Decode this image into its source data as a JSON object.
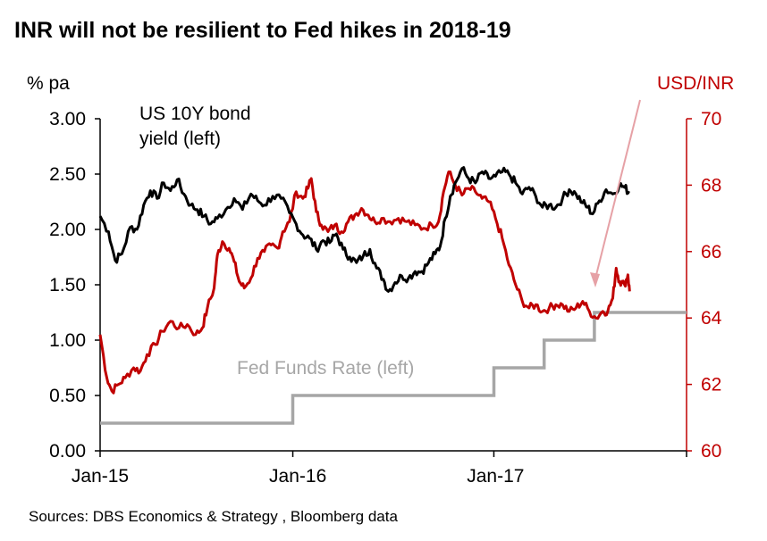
{
  "chart_data": {
    "type": "line",
    "title": "INR will not be resilient to Fed hikes in 2018-19",
    "source": "Sources: DBS Economics & Strategy , Bloomberg data",
    "left_axis": {
      "unit_label": "% pa",
      "min": 0,
      "max": 3,
      "ticks": [
        "0.00",
        "0.50",
        "1.00",
        "1.50",
        "2.00",
        "2.50",
        "3.00"
      ]
    },
    "right_axis": {
      "unit_label": "USD/INR",
      "min": 60,
      "max": 70,
      "ticks": [
        "60",
        "62",
        "64",
        "66",
        "68",
        "70"
      ]
    },
    "x_axis": {
      "tick_labels": [
        "Jan-15",
        "Jan-16",
        "Jan-17"
      ]
    },
    "annotations": {
      "us10y": [
        "US 10Y bond",
        "yield (left)"
      ],
      "ffr": "Fed Funds Rate (left)"
    },
    "colors": {
      "us10y": "#000000",
      "usdinr": "#c00000",
      "ffr": "#a6a6a6",
      "arrow": "#e6a1a6"
    },
    "series": [
      {
        "name": "US 10Y bond yield (left)",
        "axis": "left",
        "points": [
          [
            0,
            2.12
          ],
          [
            0.5,
            1.98
          ],
          [
            0.9,
            1.72
          ],
          [
            1.3,
            1.78
          ],
          [
            1.8,
            2.02
          ],
          [
            2.2,
            2.0
          ],
          [
            2.6,
            2.22
          ],
          [
            3.0,
            2.35
          ],
          [
            3.4,
            2.28
          ],
          [
            3.8,
            2.42
          ],
          [
            4.2,
            2.35
          ],
          [
            4.6,
            2.45
          ],
          [
            5.0,
            2.32
          ],
          [
            5.4,
            2.22
          ],
          [
            5.8,
            2.18
          ],
          [
            6.2,
            2.12
          ],
          [
            6.6,
            2.05
          ],
          [
            7.0,
            2.1
          ],
          [
            7.5,
            2.18
          ],
          [
            8.0,
            2.28
          ],
          [
            8.5,
            2.18
          ],
          [
            9.0,
            2.32
          ],
          [
            9.4,
            2.26
          ],
          [
            9.8,
            2.22
          ],
          [
            10.3,
            2.3
          ],
          [
            10.8,
            2.28
          ],
          [
            11.3,
            2.15
          ],
          [
            11.7,
            2.05
          ],
          [
            12.1,
            1.95
          ],
          [
            12.5,
            1.92
          ],
          [
            12.9,
            1.82
          ],
          [
            13.3,
            1.9
          ],
          [
            13.7,
            1.88
          ],
          [
            14.1,
            1.96
          ],
          [
            14.5,
            1.82
          ],
          [
            14.9,
            1.75
          ],
          [
            15.3,
            1.7
          ],
          [
            15.7,
            1.76
          ],
          [
            16.1,
            1.82
          ],
          [
            16.5,
            1.65
          ],
          [
            16.9,
            1.55
          ],
          [
            17.2,
            1.44
          ],
          [
            17.6,
            1.52
          ],
          [
            18.0,
            1.58
          ],
          [
            18.4,
            1.56
          ],
          [
            18.8,
            1.62
          ],
          [
            19.2,
            1.62
          ],
          [
            19.6,
            1.7
          ],
          [
            20.0,
            1.78
          ],
          [
            20.3,
            1.85
          ],
          [
            20.6,
            2.1
          ],
          [
            20.9,
            2.3
          ],
          [
            21.2,
            2.42
          ],
          [
            21.6,
            2.55
          ],
          [
            22.0,
            2.46
          ],
          [
            22.4,
            2.42
          ],
          [
            22.8,
            2.52
          ],
          [
            23.2,
            2.46
          ],
          [
            23.6,
            2.48
          ],
          [
            24.0,
            2.52
          ],
          [
            24.4,
            2.5
          ],
          [
            24.8,
            2.42
          ],
          [
            25.2,
            2.32
          ],
          [
            25.6,
            2.38
          ],
          [
            26.0,
            2.3
          ],
          [
            26.4,
            2.2
          ],
          [
            26.8,
            2.22
          ],
          [
            27.2,
            2.2
          ],
          [
            27.6,
            2.28
          ],
          [
            28.0,
            2.36
          ],
          [
            28.4,
            2.32
          ],
          [
            28.8,
            2.24
          ],
          [
            29.1,
            2.2
          ],
          [
            29.4,
            2.14
          ],
          [
            29.8,
            2.26
          ],
          [
            30.2,
            2.36
          ],
          [
            30.6,
            2.32
          ],
          [
            31.0,
            2.4
          ],
          [
            31.3,
            2.38
          ],
          [
            31.6,
            2.33
          ]
        ]
      },
      {
        "name": "USD/INR",
        "axis": "right",
        "points": [
          [
            0,
            63.5
          ],
          [
            0.4,
            62.2
          ],
          [
            0.7,
            61.8
          ],
          [
            1.1,
            62.0
          ],
          [
            1.5,
            62.2
          ],
          [
            2.0,
            62.5
          ],
          [
            2.4,
            62.4
          ],
          [
            2.8,
            62.9
          ],
          [
            3.3,
            63.2
          ],
          [
            3.7,
            63.6
          ],
          [
            4.2,
            63.9
          ],
          [
            4.7,
            63.7
          ],
          [
            5.2,
            63.8
          ],
          [
            5.7,
            63.5
          ],
          [
            6.1,
            63.7
          ],
          [
            6.4,
            64.3
          ],
          [
            6.8,
            64.9
          ],
          [
            7.0,
            65.9
          ],
          [
            7.3,
            66.3
          ],
          [
            7.7,
            66.1
          ],
          [
            8.0,
            65.7
          ],
          [
            8.3,
            65.1
          ],
          [
            8.6,
            64.9
          ],
          [
            9.0,
            65.2
          ],
          [
            9.4,
            65.8
          ],
          [
            9.8,
            66.0
          ],
          [
            10.2,
            66.2
          ],
          [
            10.6,
            66.1
          ],
          [
            10.9,
            66.6
          ],
          [
            11.3,
            66.9
          ],
          [
            11.7,
            67.8
          ],
          [
            12.1,
            67.6
          ],
          [
            12.4,
            67.9
          ],
          [
            12.6,
            68.2
          ],
          [
            12.9,
            67.2
          ],
          [
            13.2,
            66.8
          ],
          [
            13.6,
            66.6
          ],
          [
            14.0,
            66.8
          ],
          [
            14.4,
            66.6
          ],
          [
            14.8,
            66.9
          ],
          [
            15.2,
            67.1
          ],
          [
            15.6,
            67.3
          ],
          [
            16.0,
            67.1
          ],
          [
            16.4,
            66.9
          ],
          [
            16.8,
            67.0
          ],
          [
            17.3,
            66.9
          ],
          [
            17.8,
            67.0
          ],
          [
            18.3,
            66.9
          ],
          [
            18.8,
            66.8
          ],
          [
            19.3,
            66.7
          ],
          [
            19.8,
            66.8
          ],
          [
            20.2,
            66.9
          ],
          [
            20.5,
            67.8
          ],
          [
            20.8,
            68.4
          ],
          [
            21.2,
            68.0
          ],
          [
            21.6,
            67.7
          ],
          [
            22.0,
            67.9
          ],
          [
            22.4,
            67.8
          ],
          [
            22.8,
            67.6
          ],
          [
            23.2,
            67.5
          ],
          [
            23.6,
            67.0
          ],
          [
            24.0,
            66.4
          ],
          [
            24.4,
            65.6
          ],
          [
            24.8,
            65.0
          ],
          [
            25.2,
            64.5
          ],
          [
            25.6,
            64.3
          ],
          [
            26.0,
            64.4
          ],
          [
            26.4,
            64.2
          ],
          [
            26.8,
            64.3
          ],
          [
            27.2,
            64.4
          ],
          [
            27.6,
            64.4
          ],
          [
            28.0,
            64.2
          ],
          [
            28.4,
            64.3
          ],
          [
            28.8,
            64.5
          ],
          [
            29.2,
            64.2
          ],
          [
            29.6,
            64.0
          ],
          [
            30.0,
            64.2
          ],
          [
            30.3,
            64.2
          ],
          [
            30.6,
            64.6
          ],
          [
            30.8,
            65.5
          ],
          [
            31.0,
            65.1
          ],
          [
            31.3,
            65.0
          ],
          [
            31.5,
            65.3
          ],
          [
            31.6,
            64.8
          ]
        ]
      },
      {
        "name": "Fed Funds Rate (left)",
        "axis": "left",
        "points": [
          [
            0,
            0.25
          ],
          [
            11.5,
            0.25
          ],
          [
            11.5,
            0.5
          ],
          [
            23.5,
            0.5
          ],
          [
            23.5,
            0.75
          ],
          [
            26.5,
            0.75
          ],
          [
            26.5,
            1.0
          ],
          [
            29.5,
            1.0
          ],
          [
            29.5,
            1.25
          ],
          [
            35.0,
            1.25
          ]
        ]
      }
    ]
  }
}
